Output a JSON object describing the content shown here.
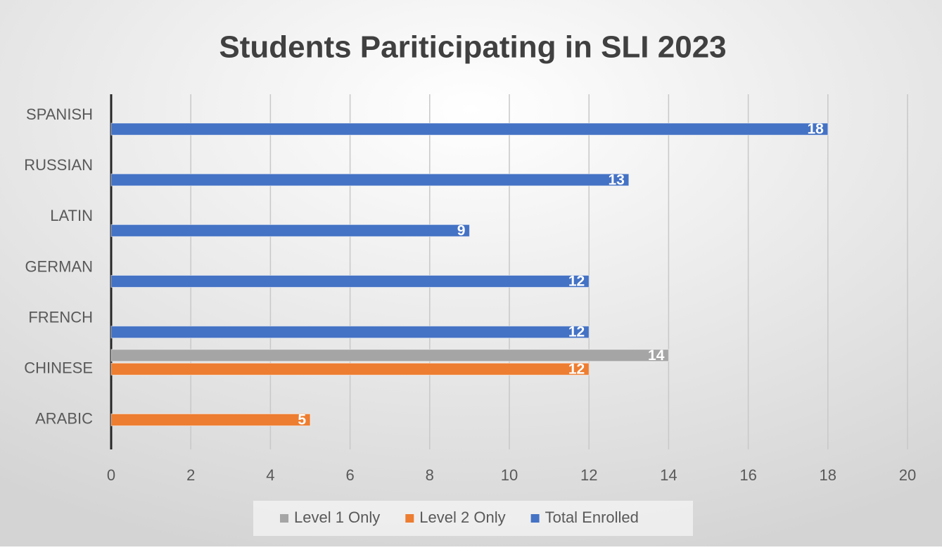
{
  "chart_data": {
    "type": "bar",
    "orientation": "horizontal",
    "title": "Students Pariticipating in SLI 2023",
    "categories": [
      "SPANISH",
      "RUSSIAN",
      "LATIN",
      "GERMAN",
      "FRENCH",
      "CHINESE",
      "ARABIC"
    ],
    "series": [
      {
        "name": "Level 1 Only",
        "color": "#a5a5a5",
        "values": [
          null,
          null,
          null,
          null,
          null,
          14,
          null
        ]
      },
      {
        "name": "Level 2 Only",
        "color": "#ed7d31",
        "values": [
          null,
          null,
          null,
          null,
          null,
          12,
          5
        ]
      },
      {
        "name": "Total Enrolled",
        "color": "#4472c4",
        "values": [
          18,
          13,
          9,
          12,
          12,
          null,
          null
        ]
      }
    ],
    "xlim": [
      0,
      20
    ],
    "xticks": [
      0,
      2,
      4,
      6,
      8,
      10,
      12,
      14,
      16,
      18,
      20
    ],
    "grid": true,
    "legend": "bottom"
  }
}
